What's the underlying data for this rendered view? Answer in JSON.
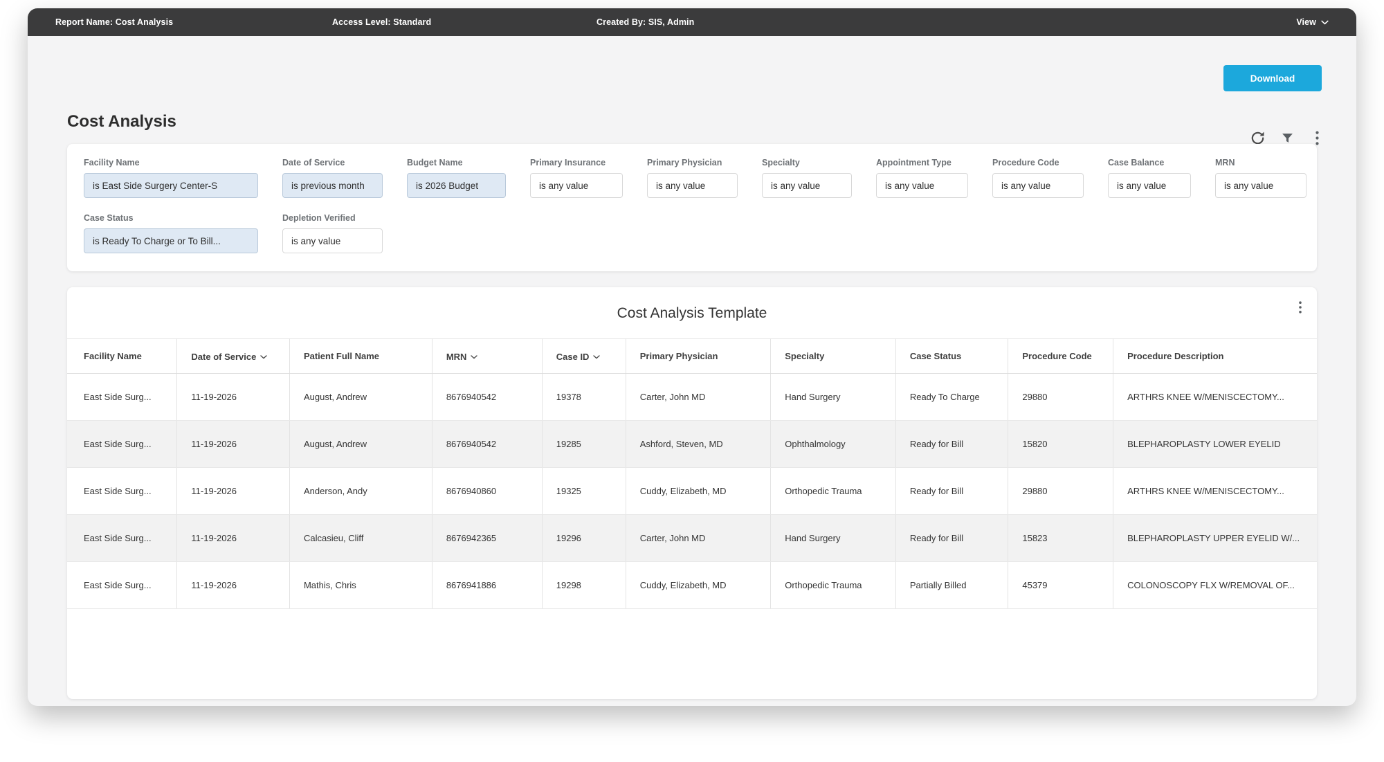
{
  "topbar": {
    "report_name": "Report Name: Cost Analysis",
    "access_level": "Access Level: Standard",
    "created_by": "Created By: SIS, Admin",
    "view_label": "View"
  },
  "toolbar": {
    "download_label": "Download"
  },
  "page": {
    "title": "Cost Analysis"
  },
  "filters": {
    "fields": [
      {
        "row": 1,
        "label": "Facility Name",
        "value": "is East Side Surgery Center-S",
        "active": true
      },
      {
        "row": 1,
        "label": "Date of Service",
        "value": "is previous month",
        "active": true
      },
      {
        "row": 1,
        "label": "Budget Name",
        "value": "is 2026 Budget",
        "active": true
      },
      {
        "row": 1,
        "label": "Primary Insurance",
        "value": "is any value",
        "active": false
      },
      {
        "row": 1,
        "label": "Primary Physician",
        "value": "is any value",
        "active": false
      },
      {
        "row": 1,
        "label": "Specialty",
        "value": "is any value",
        "active": false
      },
      {
        "row": 1,
        "label": "Appointment Type",
        "value": "is any value",
        "active": false
      },
      {
        "row": 1,
        "label": "Procedure Code",
        "value": "is any value",
        "active": false
      },
      {
        "row": 1,
        "label": "Case Balance",
        "value": "is any value",
        "active": false
      },
      {
        "row": 1,
        "label": "MRN",
        "value": "is any value",
        "active": false
      },
      {
        "row": 2,
        "label": "Case Status",
        "value": "is Ready To Charge or To Bill...",
        "active": true
      },
      {
        "row": 2,
        "label": "Depletion Verified",
        "value": "is any value",
        "active": false
      }
    ]
  },
  "table": {
    "title": "Cost Analysis Template",
    "columns": [
      {
        "label": "Facility Name",
        "sortable": false
      },
      {
        "label": "Date of Service",
        "sortable": true
      },
      {
        "label": "Patient Full Name",
        "sortable": false
      },
      {
        "label": "MRN",
        "sortable": true
      },
      {
        "label": "Case ID",
        "sortable": true
      },
      {
        "label": "Primary Physician",
        "sortable": false
      },
      {
        "label": "Specialty",
        "sortable": false
      },
      {
        "label": "Case Status",
        "sortable": false
      },
      {
        "label": "Procedure Code",
        "sortable": false
      },
      {
        "label": "Procedure Description",
        "sortable": false
      }
    ],
    "rows": [
      [
        "East Side Surg...",
        "11-19-2026",
        "August, Andrew",
        "8676940542",
        "19378",
        "Carter, John MD",
        "Hand Surgery",
        "Ready To Charge",
        "29880",
        "ARTHRS KNEE W/MENISCECTOMY..."
      ],
      [
        "East Side Surg...",
        "11-19-2026",
        "August, Andrew",
        "8676940542",
        "19285",
        "Ashford, Steven, MD",
        "Ophthalmology",
        "Ready for Bill",
        "15820",
        "BLEPHAROPLASTY LOWER EYELID"
      ],
      [
        "East Side Surg...",
        "11-19-2026",
        "Anderson, Andy",
        "8676940860",
        "19325",
        "Cuddy, Elizabeth, MD",
        "Orthopedic Trauma",
        "Ready for Bill",
        "29880",
        "ARTHRS KNEE W/MENISCECTOMY..."
      ],
      [
        "East Side Surg...",
        "11-19-2026",
        "Calcasieu, Cliff",
        "8676942365",
        "19296",
        "Carter, John MD",
        "Hand Surgery",
        "Ready for Bill",
        "15823",
        "BLEPHAROPLASTY UPPER EYELID W/..."
      ],
      [
        "East Side Surg...",
        "11-19-2026",
        "Mathis, Chris",
        "8676941886",
        "19298",
        "Cuddy, Elizabeth, MD",
        "Orthopedic Trauma",
        "Partially Billed",
        "45379",
        "COLONOSCOPY FLX W/REMOVAL OF..."
      ]
    ]
  },
  "colors": {
    "accent": "#1ca8dc",
    "topbar_bg": "#3b3b3c",
    "body_bg": "#f4f4f5",
    "active_filter_bg": "#dfe9f4",
    "active_filter_border": "#b9c9da",
    "alt_row_bg": "#f2f2f2"
  }
}
